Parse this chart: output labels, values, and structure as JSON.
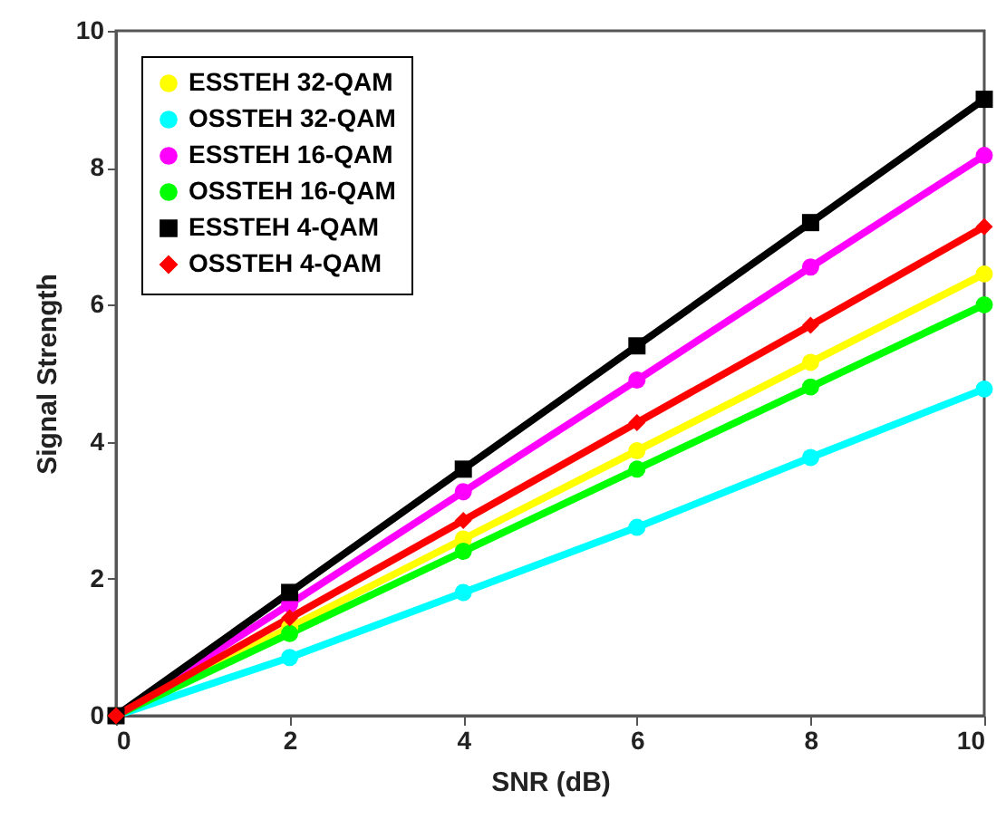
{
  "chart_data": {
    "type": "line",
    "xlabel": "SNR (dB)",
    "ylabel": "Signal Strength",
    "x": [
      0,
      2,
      4,
      6,
      8,
      10
    ],
    "series": [
      {
        "name": "ESSTEH 32-QAM",
        "color": "#ffff00",
        "marker": "circle",
        "values": [
          0,
          1.29,
          2.58,
          3.87,
          5.16,
          6.45
        ]
      },
      {
        "name": "OSSTEH 32-QAM",
        "color": "#00ffff",
        "marker": "circle",
        "values": [
          0,
          0.85,
          1.8,
          2.75,
          3.77,
          4.77
        ]
      },
      {
        "name": "ESSTEH 16-QAM",
        "color": "#ff00ff",
        "marker": "circle",
        "values": [
          0,
          1.63,
          3.27,
          4.9,
          6.55,
          8.18
        ]
      },
      {
        "name": "OSSTEH 16-QAM",
        "color": "#00ff00",
        "marker": "circle",
        "values": [
          0,
          1.2,
          2.4,
          3.6,
          4.8,
          6
        ]
      },
      {
        "name": "ESSTEH 4-QAM",
        "color": "#000000",
        "marker": "square",
        "values": [
          0,
          1.8,
          3.6,
          5.4,
          7.2,
          9
        ]
      },
      {
        "name": "OSSTEH 4-QAM",
        "color": "#ff0000",
        "marker": "diamond",
        "values": [
          0,
          1.43,
          2.85,
          4.28,
          5.7,
          7.14
        ]
      }
    ],
    "xlim": [
      0,
      10
    ],
    "xticks": [
      0,
      2,
      4,
      6,
      8,
      10
    ],
    "ylim": [
      0,
      10
    ],
    "yticks": [
      0,
      2,
      4,
      6,
      8,
      10
    ],
    "grid": false,
    "legend": "top left",
    "line_style": "solid"
  }
}
